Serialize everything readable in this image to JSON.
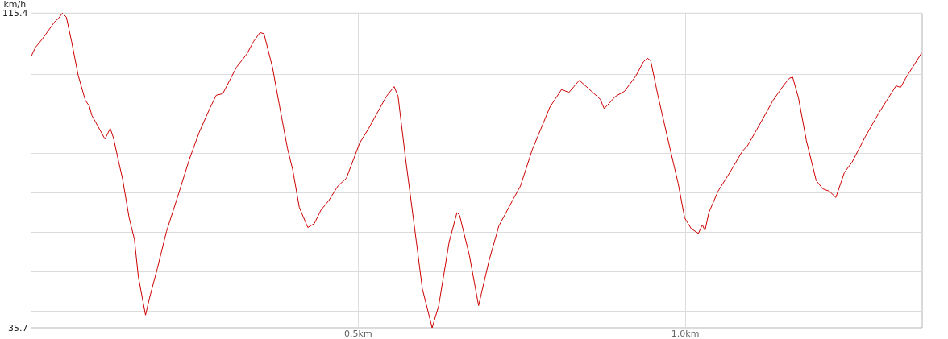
{
  "chart_data": {
    "type": "line",
    "ylabel": "km/h",
    "x": [
      0,
      0.007,
      0.017,
      0.036,
      0.042,
      0.048,
      0.054,
      0.062,
      0.072,
      0.083,
      0.089,
      0.093,
      0.113,
      0.121,
      0.126,
      0.134,
      0.14,
      0.15,
      0.158,
      0.164,
      0.175,
      0.181,
      0.193,
      0.207,
      0.226,
      0.242,
      0.257,
      0.273,
      0.283,
      0.293,
      0.314,
      0.33,
      0.34,
      0.35,
      0.356,
      0.369,
      0.379,
      0.392,
      0.4,
      0.41,
      0.423,
      0.433,
      0.443,
      0.455,
      0.469,
      0.482,
      0.502,
      0.516,
      0.543,
      0.555,
      0.561,
      0.572,
      0.59,
      0.598,
      0.613,
      0.623,
      0.639,
      0.651,
      0.655,
      0.67,
      0.684,
      0.7,
      0.715,
      0.738,
      0.748,
      0.766,
      0.793,
      0.811,
      0.822,
      0.838,
      0.852,
      0.87,
      0.876,
      0.893,
      0.907,
      0.924,
      0.936,
      0.942,
      0.947,
      0.958,
      0.977,
      0.989,
      0.999,
      1.009,
      1.02,
      1.026,
      1.03,
      1.036,
      1.05,
      1.069,
      1.087,
      1.095,
      1.116,
      1.134,
      1.151,
      1.159,
      1.164,
      1.173,
      1.185,
      1.2,
      1.21,
      1.22,
      1.23,
      1.243,
      1.255,
      1.275,
      1.296,
      1.322,
      1.329,
      1.337,
      1.361
    ],
    "series": [
      {
        "color": "#cc0000",
        "values": [
          104.4,
          106.8,
          108.8,
          113.2,
          114.1,
          115.4,
          114.4,
          108.2,
          99.7,
          93.3,
          91.9,
          89.5,
          83.5,
          86.2,
          83.8,
          77.7,
          73.3,
          63.5,
          58.1,
          48.6,
          38.9,
          43.2,
          50.7,
          60.1,
          69.9,
          78.4,
          85.2,
          91.2,
          94.6,
          95.0,
          101.7,
          105.1,
          108.2,
          110.5,
          110.2,
          101.7,
          92.6,
          81.1,
          75.7,
          66.2,
          61.1,
          62.1,
          65.5,
          67.9,
          71.6,
          73.6,
          82.4,
          86.2,
          94.3,
          96.8,
          94.3,
          79.1,
          56.1,
          45.6,
          35.7,
          41.2,
          57.4,
          64.9,
          64.2,
          54.0,
          41.3,
          52.7,
          61.5,
          68.6,
          71.6,
          80.8,
          91.6,
          96.1,
          95.3,
          98.4,
          96.3,
          93.6,
          91.2,
          94.3,
          95.6,
          99.4,
          103.1,
          104.0,
          103.4,
          94.6,
          80.8,
          72.3,
          63.5,
          60.8,
          59.6,
          61.8,
          60.3,
          64.9,
          70.3,
          75.3,
          80.4,
          81.8,
          87.9,
          93.3,
          97.3,
          98.9,
          99.2,
          93.9,
          83.1,
          73.0,
          70.9,
          70.3,
          68.7,
          75.0,
          77.7,
          84.1,
          90.2,
          97.0,
          96.6,
          99.0,
          105.3
        ]
      }
    ],
    "xlim": [
      0,
      1.362
    ],
    "xticks": [
      {
        "value": 0.5,
        "label": "0.5km"
      },
      {
        "value": 1.0,
        "label": "1.0km"
      }
    ],
    "ylim": [
      35.7,
      115.4
    ],
    "yticks": [
      35.7,
      {
        "value": 40,
        "label": null
      },
      {
        "value": 50,
        "label": null
      },
      {
        "value": 60,
        "label": null
      },
      {
        "value": 70,
        "label": null
      },
      {
        "value": 80,
        "label": null
      },
      {
        "value": 90,
        "label": null
      },
      {
        "value": 100,
        "label": null
      },
      {
        "value": 110,
        "label": null
      },
      115.4
    ],
    "grid": true,
    "marker": "none",
    "line_style": "solid"
  }
}
